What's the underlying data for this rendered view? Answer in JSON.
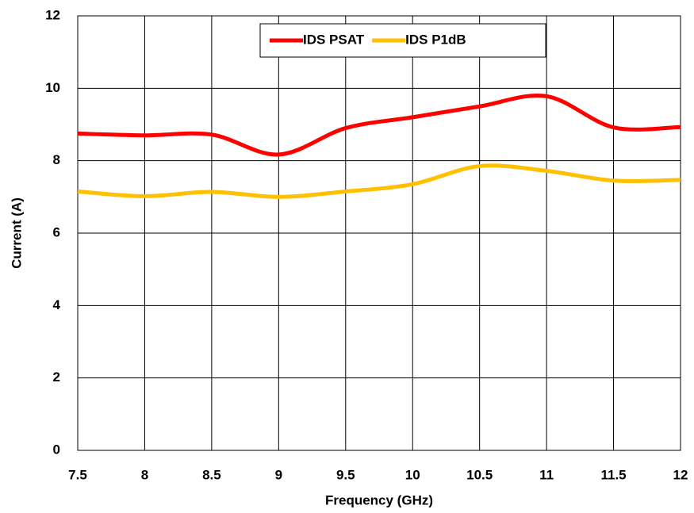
{
  "chart_data": {
    "type": "line",
    "x_label": "Frequency (GHz)",
    "y_label": "Current (A)",
    "x": [
      7.5,
      8,
      8.5,
      9,
      9.5,
      10,
      10.5,
      11,
      11.5,
      12
    ],
    "series": [
      {
        "name": "IDS PSAT",
        "color": "#ff0000",
        "values": [
          8.75,
          8.7,
          8.72,
          8.17,
          8.9,
          9.2,
          9.5,
          9.78,
          8.92,
          8.93
        ]
      },
      {
        "name": "IDS P1dB",
        "color": "#ffc000",
        "values": [
          7.15,
          7.02,
          7.14,
          7.0,
          7.15,
          7.35,
          7.85,
          7.72,
          7.45,
          7.47
        ]
      }
    ],
    "xlim": [
      7.5,
      12
    ],
    "xticks": [
      7.5,
      8,
      8.5,
      9,
      9.5,
      10,
      10.5,
      11,
      11.5,
      12
    ],
    "ylim": [
      0,
      12
    ],
    "yticks": [
      0,
      2,
      4,
      6,
      8,
      10,
      12
    ],
    "grid": true,
    "legend": "upper center"
  }
}
